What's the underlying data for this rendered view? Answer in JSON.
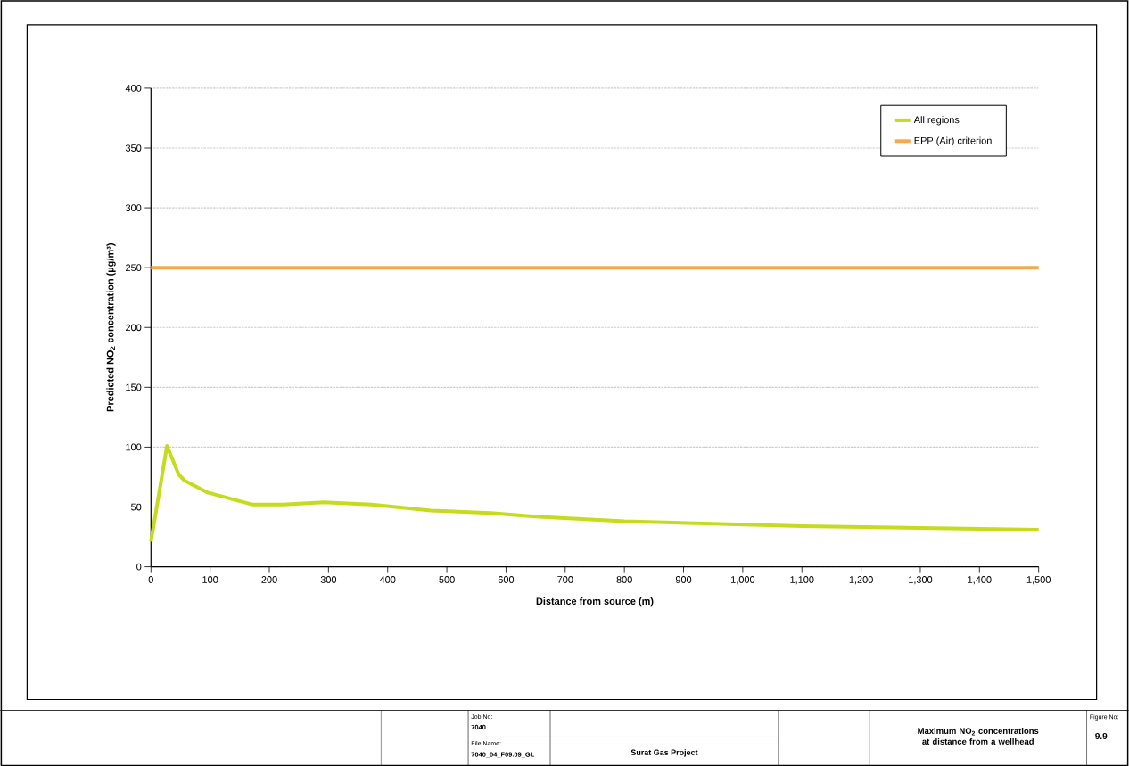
{
  "chart_data": {
    "type": "line",
    "title": "Maximum NO$_{2}$ concentrations at distance from a wellhead",
    "xlabel": "Distance from source (m)",
    "ylabel": "Predicted NO$_{2}$ concentration (µg/m³)",
    "series": [
      {
        "name": "All regions",
        "color": "#c5dc1e",
        "x": [
          0,
          27,
          47,
          57,
          96,
          172,
          223,
          292,
          373,
          473,
          574,
          649,
          800,
          1100,
          1500
        ],
        "values": [
          21,
          101,
          77,
          72,
          62,
          52,
          52,
          54,
          52,
          47,
          45,
          42,
          38,
          34,
          31
        ]
      },
      {
        "name": "EPP (Air) criterion",
        "color": "#f5a94a",
        "x": [
          0,
          1500
        ],
        "values": [
          250,
          250
        ]
      }
    ],
    "xlim": [
      0,
      1500
    ],
    "ylim": [
      0,
      400
    ],
    "xticks": [
      0,
      100,
      200,
      300,
      400,
      500,
      600,
      700,
      800,
      900,
      {
        "value": 1000,
        "label": "1,000"
      },
      {
        "value": 1100,
        "label": "1,100"
      },
      {
        "value": 1200,
        "label": "1,200"
      },
      {
        "value": 1300,
        "label": "1,300"
      },
      {
        "value": 1400,
        "label": "1,400"
      },
      {
        "value": 1500,
        "label": "1,500"
      }
    ],
    "yticks": [
      0,
      50,
      100,
      150,
      200,
      250,
      300,
      350,
      400
    ],
    "grid": "y",
    "legend": "top right",
    "marker": "none",
    "line_style": "solid",
    "annotations": [
      "Job No:",
      "7040",
      "File Name:",
      "7040_04_F09.09_GL",
      "Surat Gas Project",
      "Figure No:",
      "9.9"
    ]
  }
}
